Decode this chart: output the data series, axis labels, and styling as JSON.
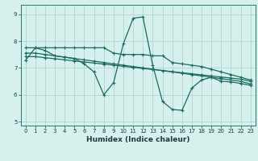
{
  "title": "",
  "xlabel": "Humidex (Indice chaleur)",
  "bg_color": "#d6f0ee",
  "grid_color": "#b8d8d4",
  "line_color": "#1a6b5e",
  "xlim": [
    -0.5,
    23.5
  ],
  "ylim": [
    4.85,
    9.35
  ],
  "yticks": [
    5,
    6,
    7,
    8,
    9
  ],
  "xticks": [
    0,
    1,
    2,
    3,
    4,
    5,
    6,
    7,
    8,
    9,
    10,
    11,
    12,
    13,
    14,
    15,
    16,
    17,
    18,
    19,
    20,
    21,
    22,
    23
  ],
  "line1_x": [
    0,
    1,
    2,
    3,
    4,
    5,
    6,
    7,
    8,
    9,
    10,
    11,
    12,
    13,
    14,
    15,
    16,
    17,
    18,
    19,
    20,
    21,
    22,
    23
  ],
  "line1_y": [
    7.28,
    7.75,
    7.65,
    7.45,
    7.4,
    7.35,
    7.15,
    6.85,
    6.0,
    6.45,
    7.9,
    8.85,
    8.9,
    7.1,
    5.75,
    5.45,
    5.42,
    6.25,
    6.55,
    6.65,
    6.5,
    6.48,
    6.42,
    6.35
  ],
  "line2_x": [
    0,
    1,
    2,
    3,
    4,
    5,
    6,
    7,
    8,
    9,
    10,
    11,
    12,
    13,
    14,
    15,
    16,
    17,
    18,
    19,
    20,
    21,
    22,
    23
  ],
  "line2_y": [
    7.75,
    7.75,
    7.75,
    7.75,
    7.75,
    7.75,
    7.75,
    7.75,
    7.75,
    7.55,
    7.5,
    7.5,
    7.5,
    7.45,
    7.45,
    7.2,
    7.15,
    7.1,
    7.05,
    6.95,
    6.85,
    6.75,
    6.65,
    6.55
  ],
  "line3_x": [
    0,
    1,
    2,
    3,
    4,
    5,
    6,
    7,
    8,
    9,
    10,
    11,
    12,
    13,
    14,
    15,
    16,
    17,
    18,
    19,
    20,
    21,
    22,
    23
  ],
  "line3_y": [
    7.55,
    7.55,
    7.5,
    7.45,
    7.4,
    7.35,
    7.3,
    7.25,
    7.2,
    7.15,
    7.1,
    7.05,
    7.0,
    6.95,
    6.9,
    6.85,
    6.8,
    6.75,
    6.7,
    6.65,
    6.6,
    6.55,
    6.5,
    6.4
  ],
  "line4_x": [
    0,
    1,
    2,
    3,
    4,
    5,
    6,
    7,
    8,
    9,
    10,
    11,
    12,
    13,
    14,
    15,
    16,
    17,
    18,
    19,
    20,
    21,
    22,
    23
  ],
  "line4_y": [
    7.42,
    7.42,
    7.38,
    7.34,
    7.3,
    7.26,
    7.22,
    7.18,
    7.14,
    7.1,
    7.06,
    7.02,
    6.98,
    6.94,
    6.9,
    6.86,
    6.82,
    6.78,
    6.74,
    6.7,
    6.66,
    6.62,
    6.58,
    6.5
  ]
}
